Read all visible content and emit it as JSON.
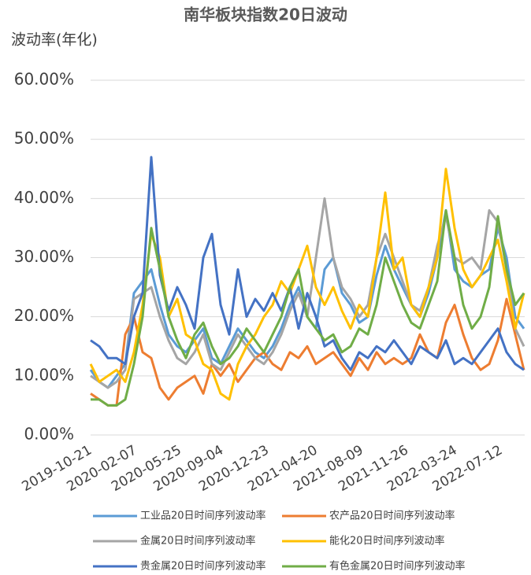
{
  "chart_data": {
    "type": "line",
    "title": "南华板块指数20日波动",
    "ylabel": "波动率(年化)",
    "x": [
      "2019-10-21",
      "2019-11-11",
      "2019-12-02",
      "2019-12-23",
      "2020-01-13",
      "2020-02-03",
      "2020-02-24",
      "2020-03-16",
      "2020-04-06",
      "2020-04-27",
      "2020-05-18",
      "2020-06-08",
      "2020-06-29",
      "2020-07-20",
      "2020-08-10",
      "2020-08-31",
      "2020-09-21",
      "2020-10-12",
      "2020-11-02",
      "2020-11-23",
      "2020-12-14",
      "2021-01-04",
      "2021-01-25",
      "2021-02-15",
      "2021-03-08",
      "2021-03-29",
      "2021-04-19",
      "2021-05-10",
      "2021-05-31",
      "2021-06-21",
      "2021-07-12",
      "2021-08-02",
      "2021-08-23",
      "2021-09-13",
      "2021-10-04",
      "2021-10-25",
      "2021-11-15",
      "2021-12-06",
      "2021-12-27",
      "2022-01-17",
      "2022-02-07",
      "2022-02-28",
      "2022-03-21",
      "2022-04-11",
      "2022-05-02",
      "2022-05-23",
      "2022-06-13",
      "2022-07-04",
      "2022-07-25",
      "2022-08-15",
      "2022-09-05"
    ],
    "xlim": [
      "2019-10-21",
      "2022-09-05"
    ],
    "xticks": [
      "2019-10-21",
      "2020-02-07",
      "2020-05-25",
      "2020-09-04",
      "2020-12-23",
      "2021-04-20",
      "2021-08-09",
      "2021-11-26",
      "2022-03-24",
      "2022-07-12"
    ],
    "ylim": [
      0,
      60
    ],
    "yticks": [
      {
        "value": 0,
        "label": "0.00%"
      },
      {
        "value": 10,
        "label": "10.00%"
      },
      {
        "value": 20,
        "label": "20.00%"
      },
      {
        "value": 30,
        "label": "30.00%"
      },
      {
        "value": 40,
        "label": "40.00%"
      },
      {
        "value": 50,
        "label": "50.00%"
      },
      {
        "value": 60,
        "label": "60.00%"
      }
    ],
    "grid": true,
    "legend": "bottom",
    "series": [
      {
        "name": "工业品20日时间序列波动率",
        "color": "#5b9bd5",
        "values": [
          11,
          9,
          8,
          10,
          12,
          24,
          26,
          28,
          22,
          17,
          15,
          14,
          16,
          18,
          13,
          12,
          15,
          18,
          16,
          14,
          13,
          15,
          18,
          22,
          25,
          20,
          18,
          28,
          30,
          24,
          22,
          19,
          20,
          27,
          32,
          28,
          25,
          22,
          20,
          24,
          30,
          38,
          28,
          26,
          25,
          27,
          28,
          35,
          30,
          20,
          18
        ]
      },
      {
        "name": "农产品20日时间序列波动率",
        "color": "#ed7d31",
        "values": [
          7,
          6,
          5,
          5,
          17,
          20,
          14,
          13,
          8,
          6,
          8,
          9,
          10,
          7,
          12,
          10,
          12,
          9,
          11,
          13,
          14,
          12,
          11,
          14,
          13,
          15,
          12,
          13,
          14,
          12,
          10,
          13,
          11,
          14,
          12,
          13,
          12,
          13,
          17,
          14,
          13,
          19,
          22,
          17,
          13,
          11,
          12,
          16,
          23,
          17,
          11
        ]
      },
      {
        "name": "金属20日时间序列波动率",
        "color": "#a5a5a5",
        "values": [
          10,
          9,
          8,
          9,
          11,
          23,
          24,
          25,
          20,
          16,
          13,
          12,
          14,
          17,
          12,
          11,
          14,
          17,
          15,
          13,
          12,
          14,
          17,
          21,
          24,
          20,
          30,
          40,
          30,
          25,
          23,
          20,
          22,
          30,
          34,
          30,
          26,
          22,
          21,
          25,
          32,
          37,
          30,
          29,
          30,
          28,
          38,
          36,
          28,
          18,
          15
        ]
      },
      {
        "name": "能化20日时间序列波动率",
        "color": "#ffc000",
        "values": [
          12,
          9,
          10,
          11,
          9,
          14,
          22,
          34,
          30,
          20,
          23,
          17,
          16,
          12,
          11,
          7,
          6,
          12,
          15,
          17,
          20,
          22,
          26,
          24,
          28,
          32,
          25,
          22,
          25,
          21,
          18,
          22,
          20,
          30,
          41,
          28,
          30,
          22,
          20,
          25,
          30,
          45,
          35,
          28,
          25,
          27,
          30,
          33,
          26,
          18,
          24
        ]
      },
      {
        "name": "贵金属20日时间序列波动率",
        "color": "#4472c4",
        "values": [
          16,
          15,
          13,
          13,
          12,
          20,
          24,
          47,
          27,
          21,
          25,
          22,
          18,
          30,
          34,
          22,
          17,
          28,
          20,
          23,
          21,
          24,
          21,
          25,
          18,
          24,
          20,
          15,
          16,
          13,
          11,
          14,
          13,
          15,
          14,
          16,
          14,
          12,
          15,
          14,
          13,
          16,
          12,
          13,
          12,
          14,
          16,
          18,
          14,
          12,
          11
        ]
      },
      {
        "name": "有色金属20日时间序列波动率",
        "color": "#70ad47",
        "values": [
          6,
          6,
          5,
          5,
          6,
          12,
          20,
          35,
          28,
          20,
          16,
          13,
          17,
          19,
          15,
          12,
          13,
          15,
          18,
          16,
          14,
          17,
          20,
          25,
          28,
          20,
          18,
          16,
          17,
          14,
          15,
          18,
          17,
          22,
          30,
          26,
          22,
          19,
          18,
          22,
          26,
          38,
          30,
          22,
          18,
          20,
          25,
          37,
          28,
          22,
          24
        ]
      }
    ]
  }
}
